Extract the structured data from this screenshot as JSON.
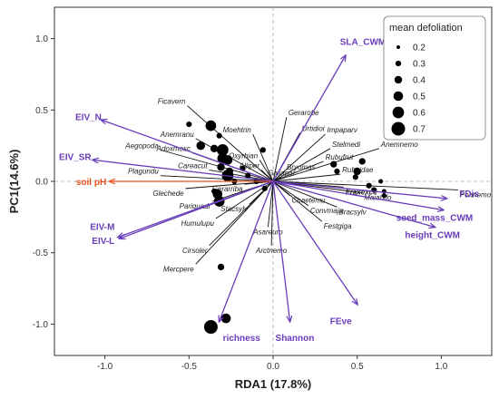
{
  "chart_data": {
    "type": "scatter",
    "xlabel": "RDA1 (17.8%)",
    "ylabel": "PC1(14.6%)",
    "xlim": [
      -1.3,
      1.3
    ],
    "ylim": [
      -1.22,
      1.22
    ],
    "xticks": [
      -1.0,
      -0.5,
      0.0,
      0.5,
      1.0
    ],
    "yticks": [
      -1.0,
      -0.5,
      0.0,
      0.5,
      1.0
    ],
    "xtick_labels": [
      "-1.0",
      "-0.5",
      "0.0",
      "0.5",
      "1.0"
    ],
    "ytick_labels": [
      "-1.0",
      "-0.5",
      "0.0",
      "0.5",
      "1.0"
    ],
    "grid": false,
    "reference_lines": {
      "x": 0,
      "y": 0,
      "style": "dashed"
    },
    "arrow_color": "#6a3dba",
    "supplementary_arrow_color": "#e8501e",
    "legend": {
      "title": "mean defoliation",
      "placement": "top-right",
      "entries": [
        {
          "label": "0.2",
          "value": 0.2
        },
        {
          "label": "0.3",
          "value": 0.3
        },
        {
          "label": "0.4",
          "value": 0.4
        },
        {
          "label": "0.5",
          "value": 0.5
        },
        {
          "label": "0.6",
          "value": 0.6
        },
        {
          "label": "0.7",
          "value": 0.7
        }
      ]
    },
    "arrows": [
      {
        "label": "SLA_CWM",
        "x": 0.43,
        "y": 0.88
      },
      {
        "label": "EIV_N",
        "x": -1.02,
        "y": 0.43
      },
      {
        "label": "EIV_SR",
        "x": -1.07,
        "y": 0.15
      },
      {
        "label": "soil pH",
        "x": -0.97,
        "y": 0.0,
        "supplementary": true
      },
      {
        "label": "EIV-M",
        "x": -0.92,
        "y": -0.39
      },
      {
        "label": "EIV-L",
        "x": -0.91,
        "y": -0.4
      },
      {
        "label": "richness",
        "x": -0.32,
        "y": -0.98
      },
      {
        "label": "Shannon",
        "x": 0.1,
        "y": -0.98
      },
      {
        "label": "FEve",
        "x": 0.5,
        "y": -0.86
      },
      {
        "label": "FDis",
        "x": 1.03,
        "y": -0.12
      },
      {
        "label": "seed_mass_CWM",
        "x": 1.01,
        "y": -0.2
      },
      {
        "label": "height_CWM",
        "x": 0.96,
        "y": -0.32
      }
    ],
    "species": [
      {
        "label": "Ficavern",
        "x": -0.51,
        "y": 0.53
      },
      {
        "label": "Anemranu",
        "x": -0.46,
        "y": 0.3
      },
      {
        "label": "Adoxmosc",
        "x": -0.48,
        "y": 0.2
      },
      {
        "label": "Aegopoda",
        "x": -0.67,
        "y": 0.22
      },
      {
        "label": "Plagundu",
        "x": -0.67,
        "y": 0.04
      },
      {
        "label": "Careacut",
        "x": -0.38,
        "y": 0.08
      },
      {
        "label": "Glechede",
        "x": -0.52,
        "y": -0.05
      },
      {
        "label": "Moehtrin",
        "x": -0.12,
        "y": 0.33
      },
      {
        "label": "Gerarobe",
        "x": 0.08,
        "y": 0.45
      },
      {
        "label": "Urtidioi",
        "x": 0.16,
        "y": 0.34
      },
      {
        "label": "Impaparv",
        "x": 0.31,
        "y": 0.33
      },
      {
        "label": "Oxyrhian",
        "x": -0.08,
        "y": 0.15
      },
      {
        "label": "Stelmedi",
        "x": 0.34,
        "y": 0.23
      },
      {
        "label": "Rubufrut",
        "x": 0.3,
        "y": 0.14
      },
      {
        "label": "Anemnemo",
        "x": 0.63,
        "y": 0.23
      },
      {
        "label": "Bryomas",
        "x": 0.07,
        "y": 0.07
      },
      {
        "label": "Alliper",
        "x": -0.07,
        "y": 0.08
      },
      {
        "label": "Rubuidae",
        "x": 0.4,
        "y": 0.05
      },
      {
        "label": "Galiapar",
        "x": 0.05,
        "y": 0.03
      },
      {
        "label": "Poanemo",
        "x": 1.1,
        "y": -0.06
      },
      {
        "label": "Gerarriba",
        "x": -0.17,
        "y": -0.02
      },
      {
        "label": "Chaetemu",
        "x": 0.1,
        "y": -0.1
      },
      {
        "label": "Fraxexce",
        "x": 0.42,
        "y": -0.04,
        "bold": true
      },
      {
        "label": "Maiabifo",
        "x": 0.53,
        "y": -0.08
      },
      {
        "label": "Pariquadr",
        "x": -0.36,
        "y": -0.14
      },
      {
        "label": "Stacsylv",
        "x": -0.14,
        "y": -0.16
      },
      {
        "label": "Convmaja",
        "x": 0.21,
        "y": -0.17
      },
      {
        "label": "Bracsylv",
        "x": 0.38,
        "y": -0.18
      },
      {
        "label": "Humulupu",
        "x": -0.34,
        "y": -0.26
      },
      {
        "label": "Festgiga",
        "x": 0.29,
        "y": -0.28
      },
      {
        "label": "Asareuro",
        "x": -0.03,
        "y": -0.32
      },
      {
        "label": "Cirsoler",
        "x": -0.38,
        "y": -0.45
      },
      {
        "label": "Arctnemo",
        "x": -0.01,
        "y": -0.45
      },
      {
        "label": "Mercpere",
        "x": -0.46,
        "y": -0.58
      }
    ],
    "points": [
      {
        "x": -0.5,
        "y": 0.4,
        "value": 0.3
      },
      {
        "x": -0.37,
        "y": 0.39,
        "value": 0.55
      },
      {
        "x": -0.32,
        "y": 0.32,
        "value": 0.3
      },
      {
        "x": -0.43,
        "y": 0.25,
        "value": 0.45
      },
      {
        "x": -0.35,
        "y": 0.23,
        "value": 0.4
      },
      {
        "x": -0.3,
        "y": 0.22,
        "value": 0.6
      },
      {
        "x": -0.3,
        "y": 0.16,
        "value": 0.55
      },
      {
        "x": -0.27,
        "y": 0.15,
        "value": 0.5
      },
      {
        "x": -0.31,
        "y": 0.1,
        "value": 0.4
      },
      {
        "x": -0.18,
        "y": 0.09,
        "value": 0.3
      },
      {
        "x": -0.26,
        "y": 0.07,
        "value": 0.4
      },
      {
        "x": -0.27,
        "y": 0.04,
        "value": 0.6
      },
      {
        "x": -0.23,
        "y": 0.0,
        "value": 0.3
      },
      {
        "x": -0.35,
        "y": -0.07,
        "value": 0.3
      },
      {
        "x": -0.32,
        "y": -0.14,
        "value": 0.55
      },
      {
        "x": -0.33,
        "y": -0.09,
        "value": 0.5
      },
      {
        "x": -0.15,
        "y": 0.04,
        "value": 0.3
      },
      {
        "x": -0.1,
        "y": 0.0,
        "value": 0.3
      },
      {
        "x": -0.05,
        "y": -0.05,
        "value": 0.3
      },
      {
        "x": -0.06,
        "y": 0.22,
        "value": 0.3
      },
      {
        "x": 0.36,
        "y": 0.12,
        "value": 0.35
      },
      {
        "x": 0.38,
        "y": 0.07,
        "value": 0.3
      },
      {
        "x": 0.49,
        "y": 0.03,
        "value": 0.3
      },
      {
        "x": 0.53,
        "y": 0.14,
        "value": 0.35
      },
      {
        "x": 0.5,
        "y": 0.07,
        "value": 0.4
      },
      {
        "x": 0.57,
        "y": -0.03,
        "value": 0.3
      },
      {
        "x": 0.6,
        "y": -0.06,
        "value": 0.3
      },
      {
        "x": 0.64,
        "y": 0.0,
        "value": 0.25
      },
      {
        "x": 0.66,
        "y": -0.07,
        "value": 0.25
      },
      {
        "x": 0.66,
        "y": -0.1,
        "value": 0.25
      },
      {
        "x": -0.31,
        "y": -0.6,
        "value": 0.35
      },
      {
        "x": -0.28,
        "y": -0.96,
        "value": 0.5
      },
      {
        "x": -0.37,
        "y": -1.02,
        "value": 0.7
      }
    ]
  }
}
